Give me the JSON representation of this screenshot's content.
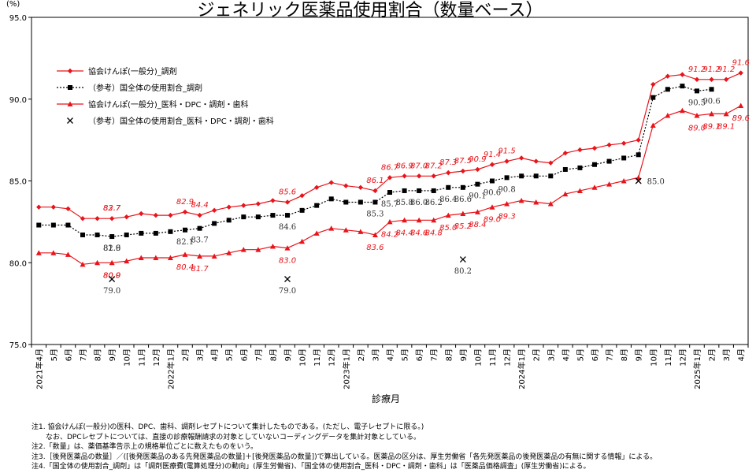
{
  "chart_data": {
    "type": "line",
    "title": "ジェネリック医薬品使用割合（数量ベース）",
    "ylabel": "(%)",
    "xlabel": "診療月",
    "ylim": [
      75.0,
      95.0
    ],
    "yticks": [
      "75.0",
      "80.0",
      "85.0",
      "90.0",
      "95.0"
    ],
    "categories": [
      "2021年4月",
      "5月",
      "6月",
      "7月",
      "8月",
      "9月",
      "10月",
      "11月",
      "12月",
      "2022年1月",
      "2月",
      "3月",
      "4月",
      "5月",
      "6月",
      "7月",
      "8月",
      "9月",
      "10月",
      "11月",
      "12月",
      "2023年1月",
      "2月",
      "3月",
      "4月",
      "5月",
      "6月",
      "7月",
      "8月",
      "9月",
      "10月",
      "11月",
      "12月",
      "2024年1月",
      "2月",
      "3月",
      "4月",
      "5月",
      "6月",
      "7月",
      "8月",
      "9月",
      "10月",
      "11月",
      "12月",
      "2025年1月",
      "2月",
      "3月",
      "4月"
    ],
    "grid": false,
    "legend_position": "top-left",
    "series": [
      {
        "name": "協会けんぽ(一般分)_調剤",
        "color": "#e8141b",
        "marker": "diamond",
        "values": [
          83.4,
          83.4,
          83.3,
          82.7,
          82.7,
          82.7,
          82.8,
          83.0,
          82.9,
          82.9,
          83.1,
          82.9,
          83.2,
          83.4,
          83.5,
          83.6,
          83.8,
          83.7,
          84.1,
          84.6,
          84.9,
          84.7,
          84.6,
          84.4,
          85.2,
          85.3,
          85.3,
          85.3,
          85.5,
          85.6,
          85.7,
          86.0,
          86.2,
          86.4,
          86.2,
          86.1,
          86.7,
          86.9,
          87.0,
          87.2,
          87.3,
          87.5,
          90.9,
          91.4,
          91.5,
          91.2,
          91.2,
          91.2,
          91.6
        ],
        "labels": [
          [
            "9月",
            "82.7"
          ],
          [
            "2月",
            "82.9"
          ],
          [
            "9月",
            "83.7"
          ],
          [
            "3月",
            "84.4"
          ],
          [
            "9月",
            "85.6"
          ],
          [
            "3月",
            "86.1"
          ],
          [
            "4月",
            "86.7"
          ],
          [
            "5月",
            "86.9"
          ],
          [
            "6月",
            "87.0"
          ],
          [
            "7月",
            "87.2"
          ],
          [
            "8月",
            "87.3"
          ],
          [
            "9月",
            "87.5"
          ],
          [
            "10月",
            "90.9"
          ],
          [
            "11月",
            "91.4"
          ],
          [
            "12月",
            "91.5"
          ],
          [
            "2025年1月",
            "91.2"
          ],
          [
            "2月",
            "91.2"
          ],
          [
            "3月",
            "91.2"
          ],
          [
            "4月",
            "91.6"
          ]
        ]
      },
      {
        "name": "（参考）国全体の使用割合_調剤",
        "color": "#000000",
        "marker": "square",
        "values": [
          82.3,
          82.3,
          82.3,
          81.7,
          81.7,
          81.6,
          81.7,
          81.8,
          81.8,
          81.9,
          82.0,
          82.1,
          82.4,
          82.6,
          82.8,
          82.8,
          82.9,
          82.9,
          83.2,
          83.5,
          83.9,
          83.7,
          83.7,
          83.7,
          84.3,
          84.4,
          84.4,
          84.4,
          84.6,
          84.6,
          84.8,
          85.0,
          85.2,
          85.3,
          85.3,
          85.3,
          85.7,
          85.8,
          86.0,
          86.2,
          86.4,
          86.6,
          90.1,
          90.6,
          90.8,
          90.5,
          90.6,
          null,
          null
        ],
        "labels": [
          [
            "9月",
            "81.6"
          ],
          [
            "2月",
            "82.1"
          ],
          [
            "9月",
            "82.9"
          ],
          [
            "3月",
            "83.7"
          ],
          [
            "9月",
            "84.6"
          ],
          [
            "3月",
            "85.3"
          ],
          [
            "4月",
            "85.7"
          ],
          [
            "5月",
            "85.8"
          ],
          [
            "6月",
            "86.0"
          ],
          [
            "7月",
            "86.2"
          ],
          [
            "8月",
            "86.4"
          ],
          [
            "9月",
            "86.6"
          ],
          [
            "10月",
            "90.1"
          ],
          [
            "11月",
            "90.6"
          ],
          [
            "12月",
            "90.8"
          ],
          [
            "2025年1月",
            "90.5"
          ],
          [
            "2月",
            "90.6"
          ]
        ]
      },
      {
        "name": "協会けんぽ(一般分)_医科・DPC・調剤・歯科",
        "color": "#e8141b",
        "marker": "triangle",
        "values": [
          80.6,
          80.6,
          80.5,
          79.9,
          80.0,
          80.0,
          80.1,
          80.3,
          80.3,
          80.3,
          80.5,
          80.4,
          80.4,
          80.6,
          80.8,
          80.8,
          81.0,
          80.9,
          81.3,
          81.8,
          82.1,
          82.0,
          81.9,
          81.7,
          82.5,
          82.6,
          82.6,
          82.6,
          82.9,
          83.0,
          83.1,
          83.4,
          83.6,
          83.8,
          83.7,
          83.6,
          84.2,
          84.4,
          84.6,
          84.8,
          85.0,
          85.2,
          88.4,
          89.0,
          89.3,
          89.0,
          89.1,
          89.1,
          89.6
        ],
        "labels": [
          [
            "9月",
            "80.0"
          ],
          [
            "2月",
            "80.4"
          ],
          [
            "9月",
            "80.9"
          ],
          [
            "3月",
            "81.7"
          ],
          [
            "9月",
            "83.0"
          ],
          [
            "3月",
            "83.6"
          ],
          [
            "4月",
            "84.2"
          ],
          [
            "5月",
            "84.4"
          ],
          [
            "6月",
            "84.6"
          ],
          [
            "7月",
            "84.8"
          ],
          [
            "8月",
            "85.0"
          ],
          [
            "9月",
            "85.2"
          ],
          [
            "10月",
            "88.4"
          ],
          [
            "11月",
            "89.0"
          ],
          [
            "12月",
            "89.3"
          ],
          [
            "2025年1月",
            "89.0"
          ],
          [
            "2月",
            "89.1"
          ],
          [
            "3月",
            "89.1"
          ],
          [
            "4月",
            "89.6"
          ]
        ]
      },
      {
        "name": "（参考）国全体の使用割合_医科・DPC・調剤・歯科",
        "color": "#000000",
        "marker": "x",
        "points": [
          [
            "9月",
            79.0,
            "79.0"
          ],
          [
            "9月",
            79.0,
            "79.0"
          ],
          [
            "9月",
            80.2,
            "80.2"
          ],
          [
            "9月",
            85.0,
            "85.0"
          ]
        ]
      }
    ]
  },
  "notes": [
    "注1. 協会けんぽ(一般分)の医科、DPC、歯科、調剤レセプトについて集計したものである。(ただし、電子レセプトに限る。)",
    "　　なお、DPCレセプトについては、直接の診療報酬請求の対象としていないコーディングデータを集計対象としている。",
    "注2.「数量」は、薬価基準告示上の規格単位ごとに数えたものをいう。",
    "注3.［後発医薬品の数量］／([後発医薬品のある先発医薬品の数量]＋[後発医薬品の数量])で算出している。医薬品の区分は、厚生労働省「各先発医薬品の後発医薬品の有無に関する情報」による。",
    "注4.「国全体の使用割合_調剤」は「調剤医療費(電算処理分)の動向」(厚生労働省)、「国全体の使用割合_医科・DPC・調剤・歯科」は「医薬品価格調査」(厚生労働省)による。"
  ]
}
